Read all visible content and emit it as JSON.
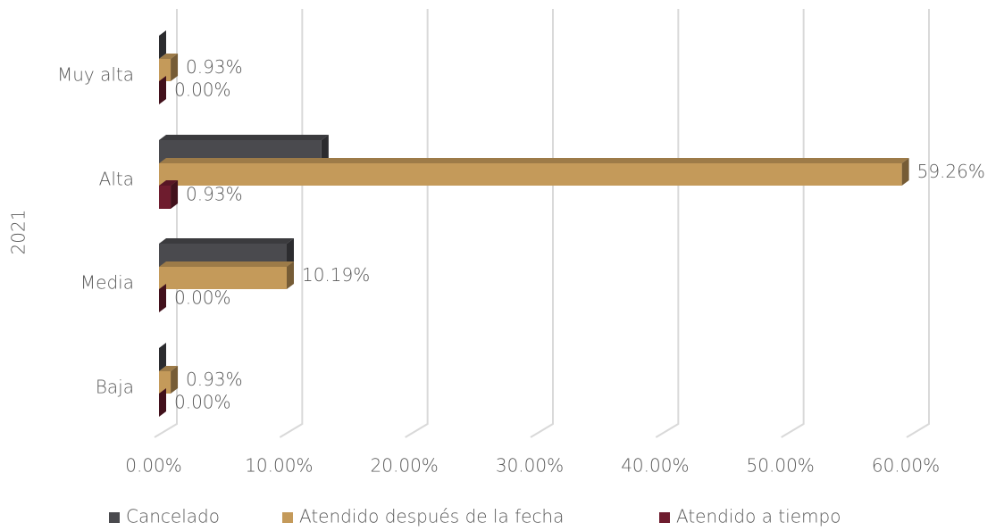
{
  "chart_data": {
    "type": "bar",
    "orientation": "horizontal",
    "y_label": "2021",
    "categories": [
      "Muy alta",
      "Alta",
      "Media",
      "Baja"
    ],
    "series": [
      {
        "name": "Cancelado",
        "color": "#4a4a4e",
        "values": [
          0,
          12.96,
          10.19,
          0
        ]
      },
      {
        "name": "Atendido después de la fecha",
        "color": "#c49a5a",
        "values": [
          0.93,
          59.26,
          10.19,
          0.93
        ],
        "value_labels": [
          "0.93%",
          "59.26%",
          "10.19%",
          "0.93%"
        ]
      },
      {
        "name": "Atendido a tiempo",
        "color": "#6e1c2e",
        "values": [
          0,
          0.93,
          0,
          0
        ],
        "value_labels": [
          "0.00%",
          "0.93%",
          "0.00%",
          "0.00%"
        ]
      }
    ],
    "xlim": [
      0,
      60
    ],
    "xticks": [
      {
        "value": 0,
        "label": "0.00%"
      },
      {
        "value": 10,
        "label": "10.00%"
      },
      {
        "value": 20,
        "label": "20.00%"
      },
      {
        "value": 30,
        "label": "30.00%"
      },
      {
        "value": 40,
        "label": "40.00%"
      },
      {
        "value": 50,
        "label": "50.00%"
      },
      {
        "value": 60,
        "label": "60.00%"
      }
    ],
    "grid": true,
    "legend": "bottom"
  }
}
